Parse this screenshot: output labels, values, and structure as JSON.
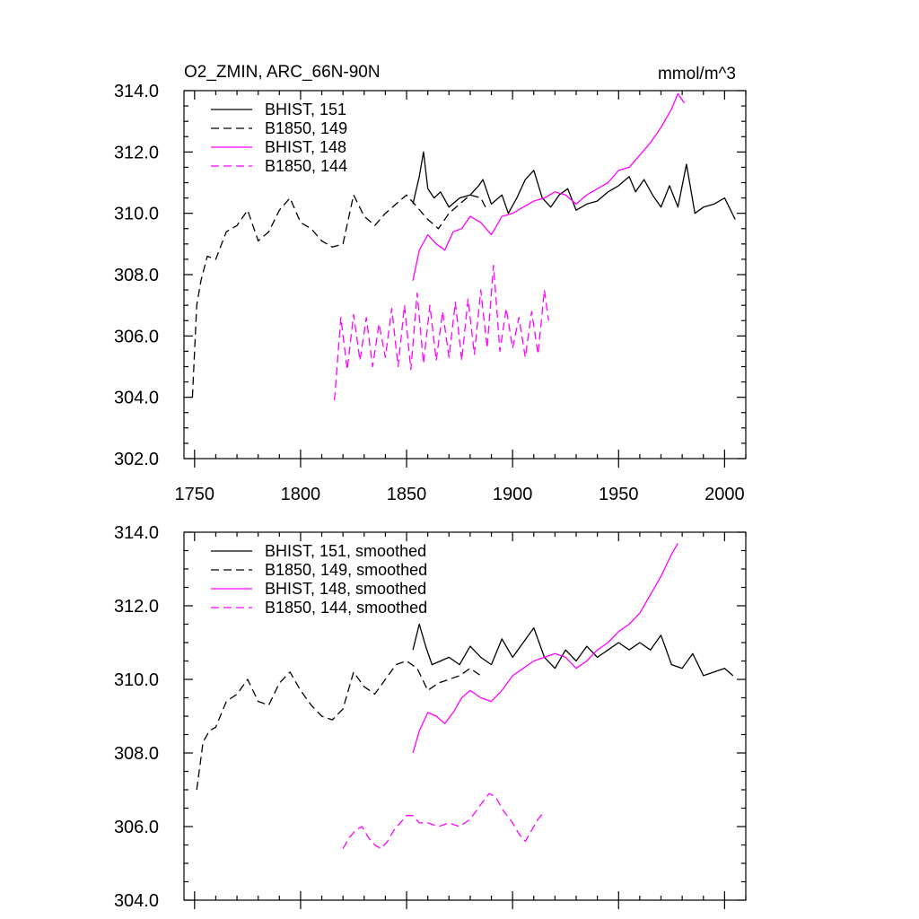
{
  "chart_data": [
    {
      "type": "line",
      "title": "O2_ZMIN, ARC_66N-90N",
      "units": "mmol/m^3",
      "xlim": [
        1745,
        2010
      ],
      "ylim": [
        302,
        314
      ],
      "xticks": [
        1750,
        1800,
        1850,
        1900,
        1950,
        2000
      ],
      "xtick_labels": [
        "1750",
        "1800",
        "1850",
        "1900",
        "1950",
        "2000"
      ],
      "yticks": [
        302,
        304,
        306,
        308,
        310,
        312,
        314
      ],
      "ytick_labels": [
        "302.0",
        "304.0",
        "306.0",
        "308.0",
        "310.0",
        "312.0",
        "314.0"
      ],
      "legend_position": "top-left",
      "series": [
        {
          "name": "BHIST, 151",
          "color": "#000000",
          "dash": "solid",
          "x": [
            1853,
            1856,
            1858,
            1860,
            1863,
            1866,
            1870,
            1875,
            1880,
            1884,
            1886,
            1890,
            1895,
            1898,
            1902,
            1906,
            1910,
            1914,
            1918,
            1922,
            1926,
            1930,
            1935,
            1940,
            1945,
            1950,
            1955,
            1958,
            1962,
            1966,
            1970,
            1974,
            1978,
            1982,
            1986,
            1990,
            1995,
            2000,
            2005
          ],
          "values": [
            310.3,
            311.2,
            312.0,
            310.8,
            310.5,
            310.7,
            310.2,
            310.5,
            310.6,
            310.9,
            311.1,
            310.3,
            310.6,
            310.0,
            310.5,
            311.1,
            311.4,
            310.5,
            310.2,
            310.6,
            310.8,
            310.1,
            310.3,
            310.4,
            310.7,
            310.9,
            311.2,
            310.7,
            311.1,
            310.6,
            310.2,
            310.9,
            310.2,
            311.6,
            310.0,
            310.2,
            310.3,
            310.5,
            309.8
          ]
        },
        {
          "name": "B1850, 149",
          "color": "#000000",
          "dash": "dashed",
          "x": [
            1749,
            1751,
            1753,
            1756,
            1760,
            1765,
            1770,
            1775,
            1780,
            1785,
            1790,
            1795,
            1800,
            1805,
            1810,
            1815,
            1820,
            1825,
            1830,
            1835,
            1840,
            1845,
            1850,
            1855,
            1860,
            1865,
            1870,
            1875,
            1880,
            1885,
            1888
          ],
          "values": [
            304.0,
            307.0,
            307.8,
            308.6,
            308.5,
            309.4,
            309.6,
            310.1,
            309.1,
            309.4,
            310.1,
            310.5,
            309.7,
            309.5,
            309.1,
            308.9,
            309.0,
            310.6,
            309.9,
            309.6,
            310.0,
            310.3,
            310.6,
            310.2,
            309.8,
            309.5,
            310.0,
            310.3,
            310.6,
            310.5,
            310.1
          ]
        },
        {
          "name": "BHIST, 148",
          "color": "#ff00ff",
          "dash": "solid",
          "x": [
            1853,
            1856,
            1860,
            1864,
            1868,
            1872,
            1876,
            1880,
            1885,
            1890,
            1895,
            1900,
            1905,
            1910,
            1915,
            1920,
            1925,
            1930,
            1935,
            1940,
            1945,
            1950,
            1955,
            1960,
            1965,
            1970,
            1975,
            1978,
            1981
          ],
          "values": [
            307.8,
            308.8,
            309.3,
            309.0,
            308.8,
            309.4,
            309.5,
            309.9,
            309.7,
            309.3,
            309.9,
            310.0,
            310.2,
            310.4,
            310.5,
            310.7,
            310.6,
            310.3,
            310.6,
            310.8,
            311.0,
            311.4,
            311.5,
            311.9,
            312.3,
            312.8,
            313.4,
            313.9,
            313.6
          ]
        },
        {
          "name": "B1850, 144",
          "color": "#ff00ff",
          "dash": "dashed",
          "x": [
            1816,
            1819,
            1822,
            1825,
            1828,
            1831,
            1834,
            1837,
            1840,
            1843,
            1846,
            1849,
            1852,
            1855,
            1858,
            1861,
            1864,
            1867,
            1870,
            1873,
            1876,
            1879,
            1882,
            1885,
            1888,
            1891,
            1894,
            1897,
            1900,
            1903,
            1906,
            1909,
            1912,
            1915,
            1917
          ],
          "values": [
            303.9,
            306.6,
            304.9,
            306.7,
            305.2,
            306.6,
            305.0,
            306.4,
            305.3,
            306.9,
            305.0,
            307.0,
            304.9,
            307.4,
            305.1,
            307.0,
            305.2,
            306.8,
            305.3,
            307.1,
            305.2,
            307.2,
            305.4,
            307.5,
            305.6,
            308.3,
            305.5,
            306.9,
            305.6,
            306.6,
            305.3,
            306.8,
            305.4,
            307.5,
            306.5
          ]
        }
      ]
    },
    {
      "type": "line",
      "xlim": [
        1745,
        2010
      ],
      "ylim": [
        304,
        314
      ],
      "xticks": [
        1750,
        1800,
        1850,
        1900,
        1950,
        2000
      ],
      "yticks": [
        304,
        306,
        308,
        310,
        312,
        314
      ],
      "ytick_labels": [
        "304.0",
        "306.0",
        "308.0",
        "310.0",
        "312.0",
        "314.0"
      ],
      "legend_position": "top-left",
      "series": [
        {
          "name": "BHIST, 151, smoothed",
          "color": "#000000",
          "dash": "solid",
          "x": [
            1853,
            1856,
            1859,
            1862,
            1866,
            1870,
            1875,
            1880,
            1885,
            1890,
            1895,
            1900,
            1905,
            1910,
            1915,
            1920,
            1925,
            1930,
            1935,
            1940,
            1945,
            1950,
            1955,
            1960,
            1965,
            1970,
            1975,
            1980,
            1985,
            1990,
            1995,
            2000,
            2004
          ],
          "values": [
            310.8,
            311.5,
            310.9,
            310.4,
            310.5,
            310.6,
            310.4,
            310.9,
            310.6,
            310.4,
            311.1,
            310.6,
            311.0,
            311.4,
            310.6,
            310.3,
            310.8,
            310.5,
            310.9,
            310.6,
            310.8,
            311.0,
            310.8,
            311.0,
            310.8,
            311.2,
            310.4,
            310.3,
            310.7,
            310.1,
            310.2,
            310.3,
            310.1
          ]
        },
        {
          "name": "B1850, 149, smoothed",
          "color": "#000000",
          "dash": "dashed",
          "x": [
            1751,
            1754,
            1757,
            1760,
            1765,
            1770,
            1775,
            1780,
            1785,
            1790,
            1795,
            1800,
            1805,
            1810,
            1815,
            1820,
            1825,
            1830,
            1835,
            1840,
            1845,
            1850,
            1855,
            1860,
            1865,
            1870,
            1875,
            1880,
            1885
          ],
          "values": [
            307.0,
            308.3,
            308.6,
            308.7,
            309.4,
            309.6,
            310.0,
            309.4,
            309.3,
            309.9,
            310.2,
            309.7,
            309.3,
            309.0,
            308.9,
            309.2,
            310.2,
            309.8,
            309.6,
            310.0,
            310.4,
            310.5,
            310.3,
            309.7,
            309.9,
            310.0,
            310.1,
            310.3,
            310.1
          ]
        },
        {
          "name": "BHIST, 148, smoothed",
          "color": "#ff00ff",
          "dash": "solid",
          "x": [
            1853,
            1856,
            1860,
            1864,
            1868,
            1872,
            1876,
            1880,
            1885,
            1890,
            1895,
            1900,
            1905,
            1910,
            1915,
            1920,
            1925,
            1930,
            1935,
            1940,
            1945,
            1950,
            1955,
            1960,
            1965,
            1970,
            1975,
            1978
          ],
          "values": [
            308.0,
            308.6,
            309.1,
            309.0,
            308.8,
            309.1,
            309.5,
            309.7,
            309.5,
            309.4,
            309.7,
            310.1,
            310.3,
            310.5,
            310.6,
            310.7,
            310.6,
            310.3,
            310.5,
            310.8,
            311.0,
            311.3,
            311.5,
            311.8,
            312.3,
            312.8,
            313.4,
            313.7
          ]
        },
        {
          "name": "B1850, 144, smoothed",
          "color": "#ff00ff",
          "dash": "dashed",
          "x": [
            1820,
            1823,
            1826,
            1829,
            1832,
            1835,
            1838,
            1841,
            1844,
            1847,
            1850,
            1853,
            1856,
            1860,
            1865,
            1870,
            1875,
            1880,
            1885,
            1889,
            1892,
            1896,
            1900,
            1903,
            1906,
            1909,
            1912,
            1915
          ],
          "values": [
            305.4,
            305.7,
            305.9,
            306.0,
            305.7,
            305.5,
            305.4,
            305.6,
            305.9,
            306.1,
            306.3,
            306.3,
            306.1,
            306.1,
            306.0,
            306.1,
            306.0,
            306.2,
            306.6,
            306.9,
            306.8,
            306.4,
            306.1,
            305.8,
            305.6,
            305.9,
            306.2,
            306.4
          ]
        }
      ]
    }
  ]
}
